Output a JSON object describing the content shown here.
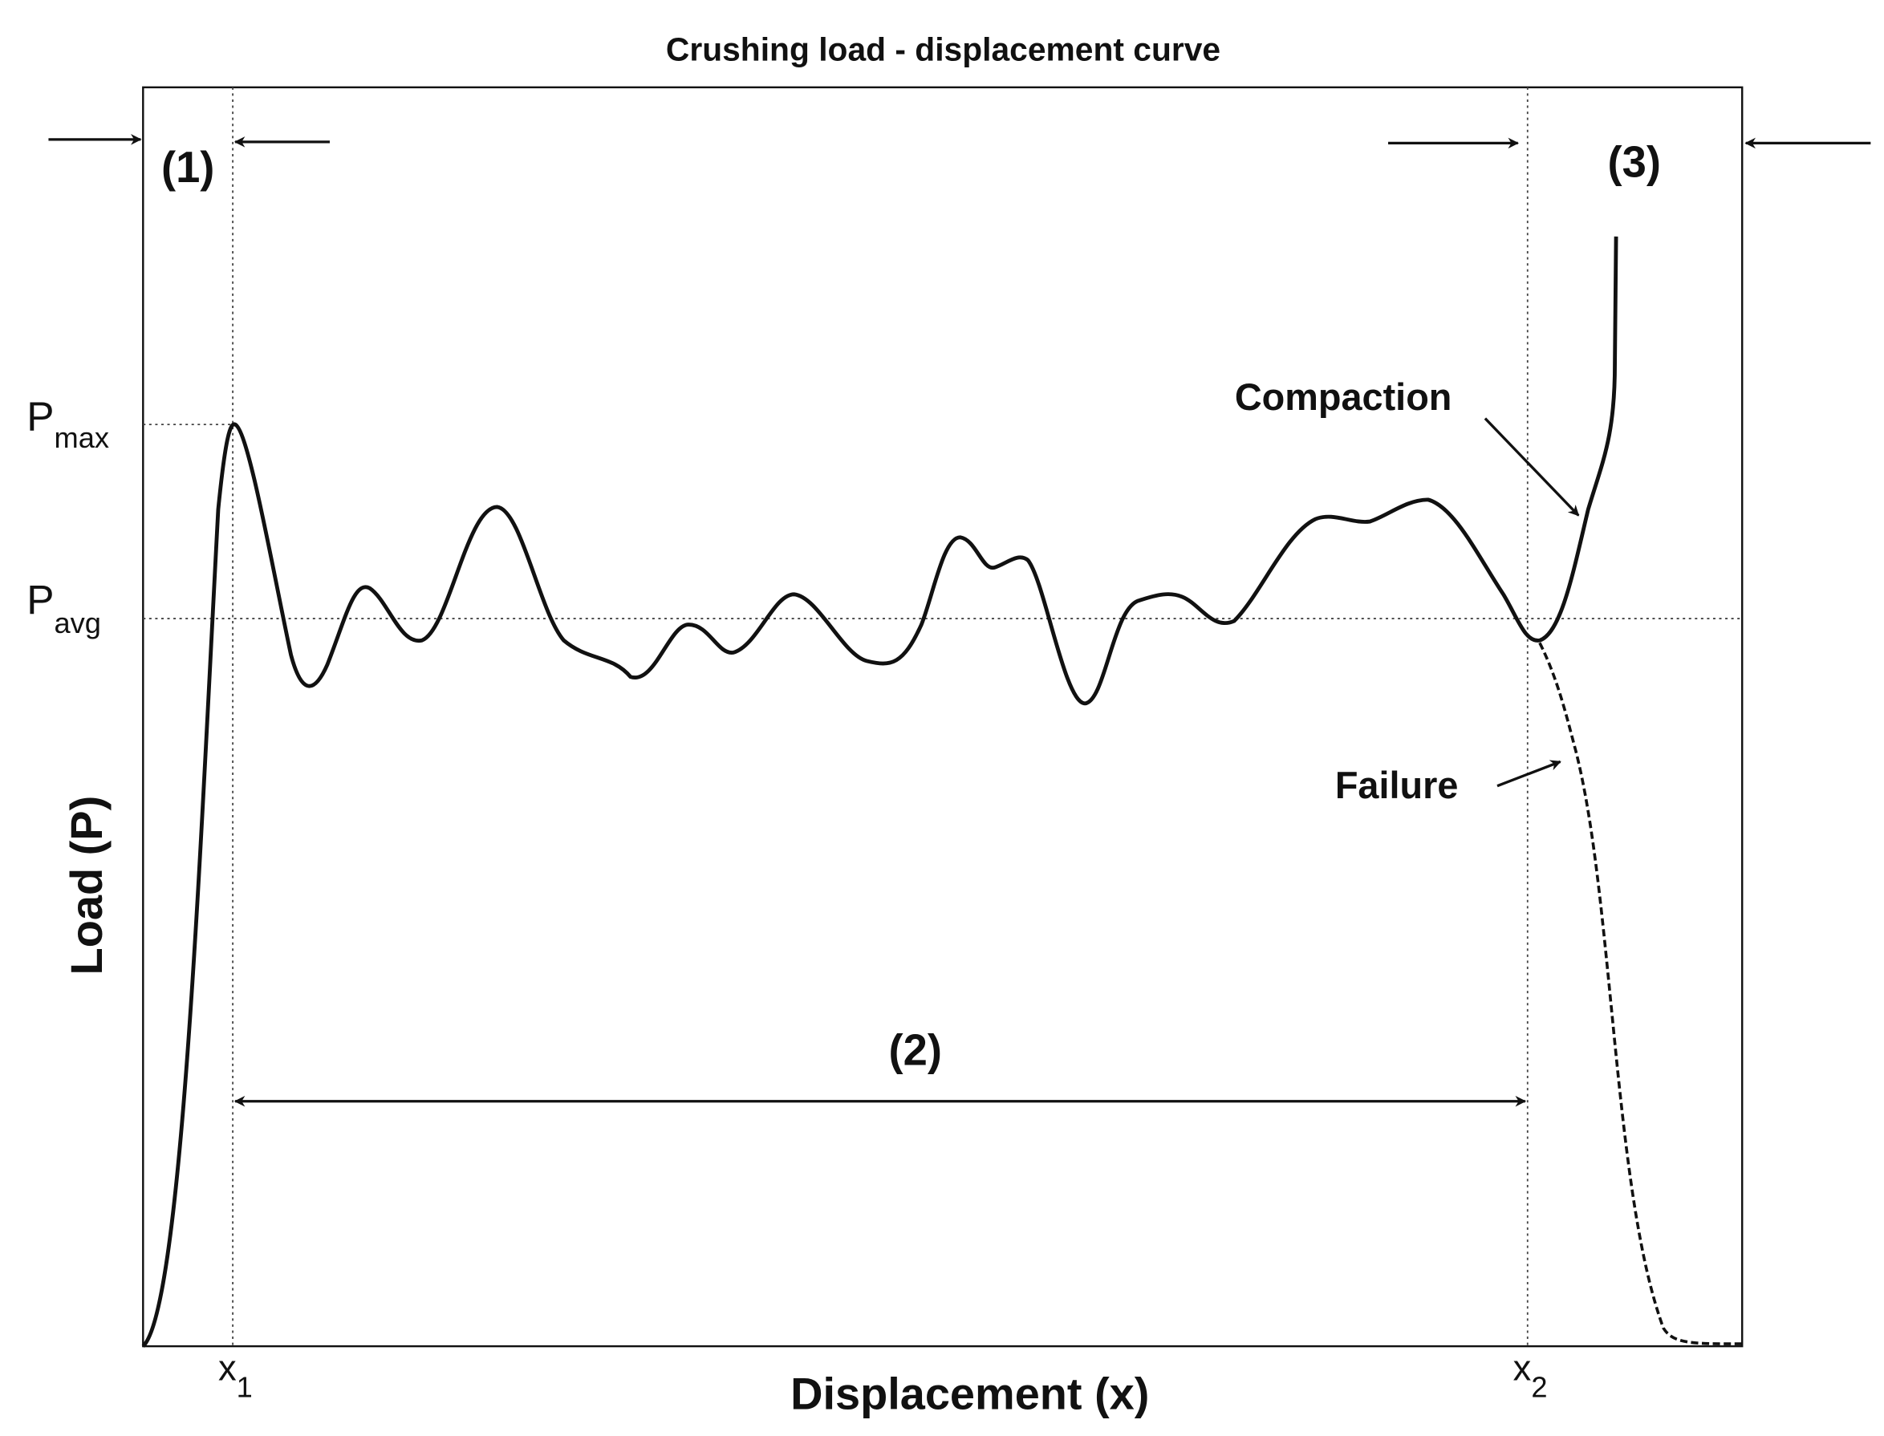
{
  "title": "Crushing load - displacement curve",
  "axes": {
    "x_label": "Displacement (x)",
    "y_label": "Load (P)"
  },
  "x_marks": [
    {
      "main": "x",
      "sub": "1"
    },
    {
      "main": "x",
      "sub": "2"
    }
  ],
  "y_marks": [
    {
      "main": "P",
      "sub": "max"
    },
    {
      "main": "P",
      "sub": "avg"
    }
  ],
  "regions": [
    "(1)",
    "(2)",
    "(3)"
  ],
  "annotations": {
    "compaction": "Compaction",
    "failure": "Failure"
  }
}
